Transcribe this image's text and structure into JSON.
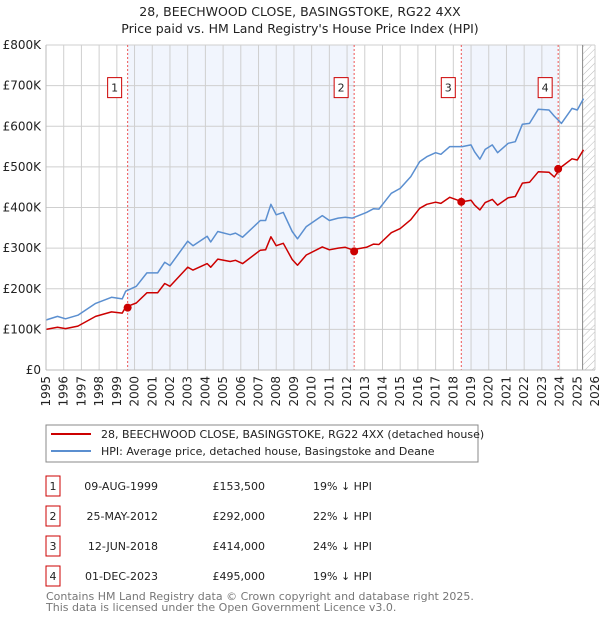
{
  "chart_data": {
    "type": "line",
    "title": "28, BEECHWOOD CLOSE, BASINGSTOKE, RG22 4XX",
    "subtitle": "Price paid vs. HM Land Registry's House Price Index (HPI)",
    "xlabel": "",
    "ylabel": "",
    "xlim": [
      1995,
      2026
    ],
    "ylim": [
      0,
      800000
    ],
    "grid": true,
    "legend_placement": "below",
    "y_ticks": [
      {
        "value": 0,
        "label": "£0"
      },
      {
        "value": 100000,
        "label": "£100K"
      },
      {
        "value": 200000,
        "label": "£200K"
      },
      {
        "value": 300000,
        "label": "£300K"
      },
      {
        "value": 400000,
        "label": "£400K"
      },
      {
        "value": 500000,
        "label": "£500K"
      },
      {
        "value": 600000,
        "label": "£600K"
      },
      {
        "value": 700000,
        "label": "£700K"
      },
      {
        "value": 800000,
        "label": "£800K"
      }
    ],
    "x_ticks": [
      "1995",
      "1996",
      "1997",
      "1998",
      "1999",
      "2000",
      "2001",
      "2002",
      "2003",
      "2004",
      "2005",
      "2006",
      "2007",
      "2008",
      "2009",
      "2010",
      "2011",
      "2012",
      "2013",
      "2014",
      "2015",
      "2016",
      "2017",
      "2018",
      "2019",
      "2020",
      "2021",
      "2022",
      "2023",
      "2024",
      "2025",
      "2026"
    ],
    "x": [
      1995.0,
      1995.65,
      1996.1,
      1996.8,
      1997.8,
      1998.7,
      1999.3,
      1999.5,
      2000.1,
      2000.7,
      2001.3,
      2001.7,
      2002.0,
      2003.0,
      2003.3,
      2004.1,
      2004.3,
      2004.7,
      2005.4,
      2005.7,
      2006.1,
      2007.1,
      2007.4,
      2007.7,
      2008.0,
      2008.4,
      2008.9,
      2009.2,
      2009.7,
      2010.6,
      2011.0,
      2011.5,
      2011.9,
      2012.3,
      2013.1,
      2013.5,
      2013.8,
      2014.5,
      2015.0,
      2015.6,
      2016.1,
      2016.5,
      2017.0,
      2017.3,
      2017.8,
      2018.5,
      2019.0,
      2019.2,
      2019.5,
      2019.8,
      2020.2,
      2020.5,
      2021.1,
      2021.5,
      2021.9,
      2022.3,
      2022.8,
      2023.4,
      2023.7,
      2024.1,
      2024.7,
      2025.0,
      2025.35
    ],
    "series": [
      {
        "name": "28, BEECHWOOD CLOSE, BASINGSTOKE, RG22 4XX (detached house)",
        "color": "#cc0000",
        "values": [
          100000,
          105000,
          102000,
          108000,
          132000,
          143000,
          140000,
          155000,
          165000,
          190000,
          190000,
          213000,
          206000,
          253000,
          246000,
          262000,
          253000,
          273000,
          267000,
          270000,
          262000,
          295000,
          296000,
          328000,
          306000,
          312000,
          272000,
          258000,
          283000,
          303000,
          296000,
          300000,
          302000,
          296000,
          302000,
          310000,
          309000,
          338000,
          348000,
          370000,
          398000,
          408000,
          413000,
          410000,
          425000,
          414000,
          418000,
          406000,
          394000,
          412000,
          420000,
          406000,
          424000,
          427000,
          460000,
          462000,
          488000,
          487000,
          475000,
          500000,
          520000,
          517000,
          542000
        ]
      },
      {
        "name": "HPI: Average price, detached house, Basingstoke and Deane",
        "color": "#5b8fd0",
        "values": [
          123000,
          132000,
          126000,
          135000,
          164000,
          179000,
          175000,
          194000,
          206000,
          239000,
          239000,
          265000,
          257000,
          317000,
          306000,
          329000,
          315000,
          341000,
          333000,
          337000,
          327000,
          368000,
          368000,
          408000,
          382000,
          388000,
          341000,
          323000,
          353000,
          380000,
          368000,
          374000,
          376000,
          374000,
          388000,
          397000,
          396000,
          435000,
          447000,
          476000,
          513000,
          525000,
          535000,
          531000,
          550000,
          550000,
          554000,
          537000,
          519000,
          543000,
          554000,
          535000,
          558000,
          562000,
          605000,
          607000,
          642000,
          640000,
          625000,
          607000,
          644000,
          640000,
          668000
        ]
      }
    ],
    "sales": [
      {
        "label": "1",
        "x": 1999.61,
        "value": 153500
      },
      {
        "label": "2",
        "x": 2012.4,
        "value": 292000
      },
      {
        "label": "3",
        "x": 2018.45,
        "value": 414000
      },
      {
        "label": "4",
        "x": 2023.92,
        "value": 495000
      }
    ],
    "shaded_ranges": [
      [
        1999.61,
        2012.4
      ],
      [
        2018.45,
        2023.92
      ]
    ],
    "forecast_hatch_from": 2025.3,
    "annotation_value": 700000
  },
  "legend": {
    "items": [
      {
        "label": "28, BEECHWOOD CLOSE, BASINGSTOKE, RG22 4XX (detached house)",
        "color": "#cc0000"
      },
      {
        "label": "HPI: Average price, detached house, Basingstoke and Deane",
        "color": "#5b8fd0"
      }
    ]
  },
  "table": {
    "rows": [
      {
        "num": "1",
        "date": "09-AUG-1999",
        "price": "£153,500",
        "hpi": "19% ↓ HPI"
      },
      {
        "num": "2",
        "date": "25-MAY-2012",
        "price": "£292,000",
        "hpi": "22% ↓ HPI"
      },
      {
        "num": "3",
        "date": "12-JUN-2018",
        "price": "£414,000",
        "hpi": "24% ↓ HPI"
      },
      {
        "num": "4",
        "date": "01-DEC-2023",
        "price": "£495,000",
        "hpi": "19% ↓ HPI"
      }
    ]
  },
  "footer": {
    "line1": "Contains HM Land Registry data © Crown copyright and database right 2025.",
    "line2": "This data is licensed under the Open Government Licence v3.0."
  }
}
